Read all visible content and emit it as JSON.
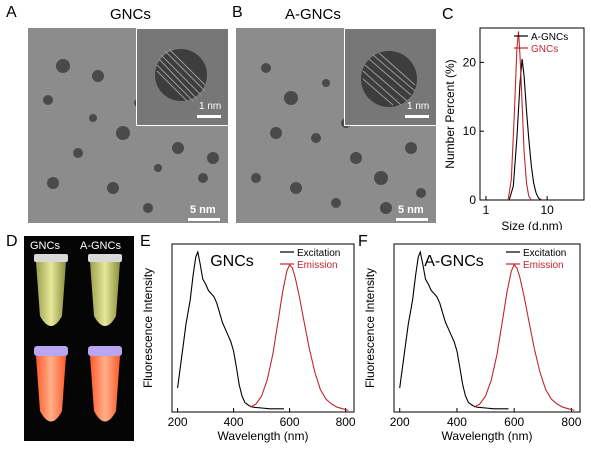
{
  "panels": {
    "A": {
      "letter": "A",
      "title": "GNCs",
      "scale_main": "5 nm",
      "scale_inset": "1 nm"
    },
    "B": {
      "letter": "B",
      "title": "A-GNCs",
      "scale_main": "5 nm",
      "scale_inset": "1 nm"
    },
    "C": {
      "letter": "C"
    },
    "D": {
      "letter": "D",
      "tube1": "GNCs",
      "tube2": "A-GNCs"
    },
    "E": {
      "letter": "E",
      "title": "GNCs"
    },
    "F": {
      "letter": "F",
      "title": "A-GNCs"
    }
  },
  "colors": {
    "black": "#000000",
    "red": "#c0262c",
    "tem_bg": "#8a8a8a",
    "glow": "#ff6a3a"
  },
  "chart_data": [
    {
      "type": "line",
      "panel": "C",
      "xlabel": "Size (d.nm)",
      "ylabel": "Number Percent (%)",
      "xscale": "log",
      "xlim": [
        0.8,
        40
      ],
      "ylim": [
        0,
        25
      ],
      "yticks": [
        0,
        10,
        20
      ],
      "xticks": [
        {
          "value": 1,
          "label": "1"
        },
        {
          "value": 10,
          "label": "10"
        }
      ],
      "legend": "top-right",
      "series": [
        {
          "name": "A-GNCs",
          "color": "#000000",
          "x": [
            2.4,
            2.8,
            3.2,
            3.6,
            3.9,
            4.2,
            4.6,
            5.0,
            5.5,
            6.0,
            6.6,
            7.2,
            8.0
          ],
          "y": [
            0,
            2,
            9,
            17,
            20.5,
            18,
            13,
            9,
            5,
            2.5,
            1,
            0.3,
            0
          ]
        },
        {
          "name": "GNCs",
          "color": "#c0262c",
          "x": [
            2.3,
            2.6,
            2.9,
            3.2,
            3.4,
            3.6,
            3.9,
            4.2,
            4.6,
            5.0,
            5.5
          ],
          "y": [
            0,
            3,
            12,
            22,
            24.5,
            21,
            14,
            7,
            2.5,
            0.6,
            0
          ]
        }
      ]
    },
    {
      "type": "line",
      "panel": "E",
      "title": "GNCs",
      "xlabel": "Wavelength (nm)",
      "ylabel": "Fluorescence Intensity",
      "xlim": [
        180,
        830
      ],
      "ylim": [
        0,
        1.05
      ],
      "xticks": [
        200,
        400,
        600,
        800
      ],
      "legend": "top-right",
      "series": [
        {
          "name": "Excitation",
          "color": "#000000",
          "x": [
            200,
            215,
            230,
            245,
            255,
            265,
            272,
            280,
            290,
            300,
            310,
            320,
            330,
            340,
            350,
            360,
            370,
            380,
            390,
            400,
            410,
            420,
            430,
            440,
            455,
            470,
            500,
            530,
            560,
            580
          ],
          "y": [
            0.15,
            0.35,
            0.55,
            0.7,
            0.85,
            0.97,
            1.0,
            0.93,
            0.83,
            0.8,
            0.76,
            0.74,
            0.72,
            0.68,
            0.62,
            0.56,
            0.52,
            0.48,
            0.44,
            0.38,
            0.28,
            0.17,
            0.1,
            0.06,
            0.04,
            0.03,
            0.025,
            0.02,
            0.02,
            0.02
          ]
        },
        {
          "name": "Emission",
          "color": "#c0262c",
          "x": [
            460,
            480,
            500,
            520,
            540,
            560,
            575,
            590,
            600,
            610,
            620,
            635,
            650,
            670,
            690,
            710,
            730,
            750,
            770,
            790,
            810
          ],
          "y": [
            0.03,
            0.05,
            0.1,
            0.2,
            0.36,
            0.58,
            0.75,
            0.88,
            0.92,
            0.9,
            0.84,
            0.72,
            0.58,
            0.4,
            0.25,
            0.14,
            0.08,
            0.05,
            0.03,
            0.02,
            0.01
          ]
        }
      ]
    },
    {
      "type": "line",
      "panel": "F",
      "title": "A-GNCs",
      "xlabel": "Wavelength (nm)",
      "ylabel": "Fluorescence Intensity",
      "xlim": [
        180,
        830
      ],
      "ylim": [
        0,
        1.05
      ],
      "xticks": [
        200,
        400,
        600,
        800
      ],
      "legend": "top-right",
      "series": [
        {
          "name": "Excitation",
          "color": "#000000",
          "x": [
            200,
            215,
            230,
            245,
            255,
            265,
            272,
            280,
            290,
            300,
            310,
            320,
            330,
            340,
            350,
            360,
            370,
            380,
            390,
            400,
            410,
            420,
            430,
            440,
            455,
            470,
            500,
            530,
            560,
            580
          ],
          "y": [
            0.15,
            0.35,
            0.55,
            0.7,
            0.85,
            0.97,
            1.0,
            0.93,
            0.83,
            0.8,
            0.76,
            0.74,
            0.72,
            0.68,
            0.62,
            0.56,
            0.52,
            0.48,
            0.44,
            0.38,
            0.28,
            0.17,
            0.1,
            0.06,
            0.04,
            0.03,
            0.025,
            0.02,
            0.02,
            0.02
          ]
        },
        {
          "name": "Emission",
          "color": "#c0262c",
          "x": [
            460,
            480,
            500,
            520,
            540,
            560,
            575,
            590,
            600,
            610,
            620,
            635,
            650,
            670,
            690,
            710,
            730,
            750,
            770,
            790,
            810
          ],
          "y": [
            0.03,
            0.05,
            0.1,
            0.2,
            0.36,
            0.58,
            0.75,
            0.88,
            0.92,
            0.9,
            0.84,
            0.72,
            0.58,
            0.4,
            0.25,
            0.14,
            0.08,
            0.05,
            0.03,
            0.02,
            0.01
          ]
        }
      ]
    }
  ]
}
